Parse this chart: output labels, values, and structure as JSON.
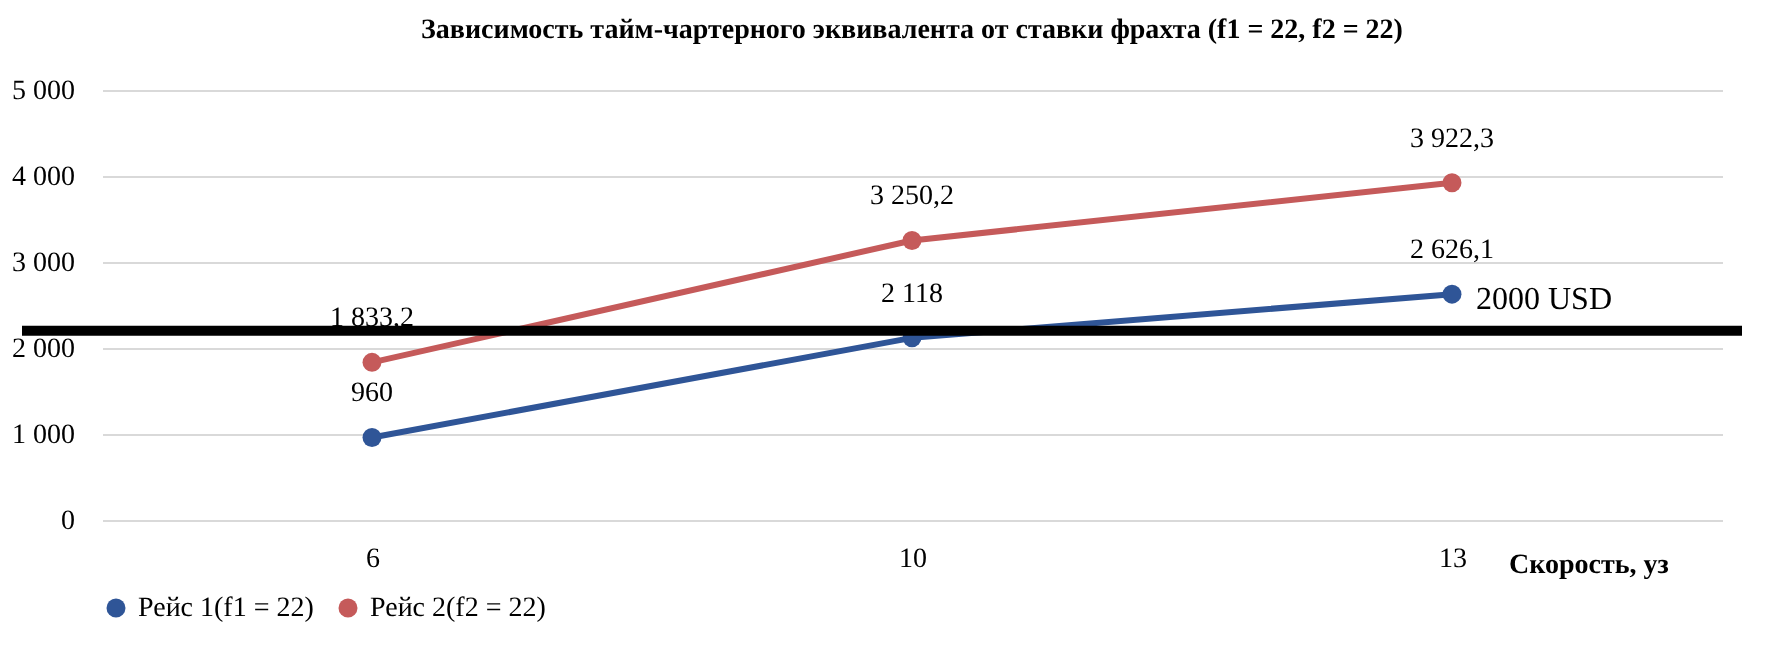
{
  "chart_data": {
    "type": "line",
    "title": "Зависимость тайм-чартерного эквивалента от ставки фрахта (f1 = 22, f2 = 22)",
    "xlabel": "Скорость, уз",
    "categories": [
      "6",
      "10",
      "13"
    ],
    "series": [
      {
        "name": "Рейс 1(f1 = 22)",
        "color": "#2f5597",
        "values": [
          960,
          2118,
          2626.1
        ],
        "value_labels": [
          "960",
          "2 118",
          "2 626,1"
        ]
      },
      {
        "name": "Рейс 2(f2 = 22)",
        "color": "#c55a5a",
        "values": [
          1833.2,
          3250.2,
          3922.3
        ],
        "value_labels": [
          "1 833,2",
          "3 250,2",
          "3 922,3"
        ]
      }
    ],
    "ylim": [
      0,
      5000
    ],
    "yticks": [
      {
        "value": 0,
        "label": "0"
      },
      {
        "value": 1000,
        "label": "1 000"
      },
      {
        "value": 2000,
        "label": "2 000"
      },
      {
        "value": 3000,
        "label": "3 000"
      },
      {
        "value": 4000,
        "label": "4 000"
      },
      {
        "value": 5000,
        "label": "5 000"
      }
    ],
    "ref_lines": [
      {
        "axis": "y",
        "value": 2200,
        "label": "2000 USD",
        "color": "#000000"
      }
    ],
    "grid": "y",
    "legend": "bottom",
    "marker": "circle",
    "line_style": "solid"
  }
}
